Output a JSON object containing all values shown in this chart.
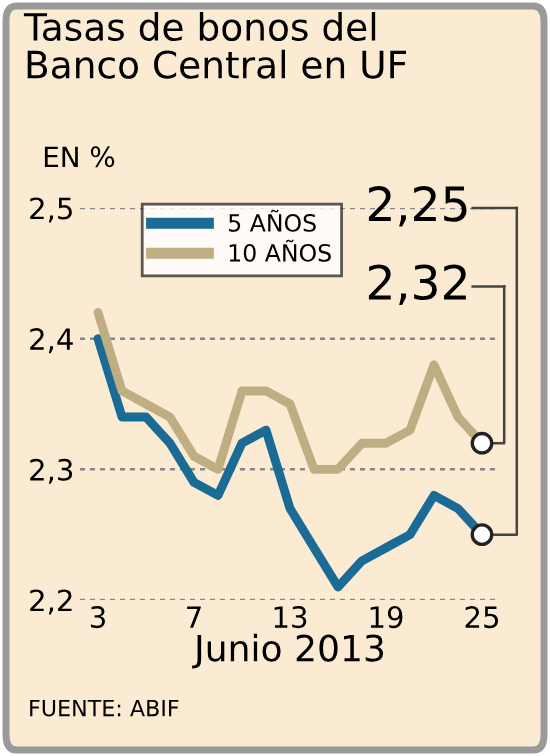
{
  "chart_data": {
    "type": "line",
    "title": "Tasas de bonos del\nBanco Central en UF",
    "ylabel": "EN %",
    "xlabel": "Junio 2013",
    "categories": [
      "3",
      null,
      null,
      null,
      "7",
      null,
      null,
      null,
      "13",
      null,
      null,
      null,
      "19",
      null,
      null,
      null,
      "25"
    ],
    "series": [
      {
        "name": "5 AÑOS",
        "color": "#1a6b96",
        "values": [
          2.4,
          2.34,
          2.34,
          2.32,
          2.29,
          2.28,
          2.32,
          2.33,
          2.27,
          2.24,
          2.21,
          2.23,
          2.24,
          2.25,
          2.28,
          2.27,
          2.25
        ]
      },
      {
        "name": "10 AÑOS",
        "color": "#bfae82",
        "values": [
          2.42,
          2.36,
          2.35,
          2.34,
          2.31,
          2.3,
          2.36,
          2.36,
          2.35,
          2.3,
          2.3,
          2.32,
          2.32,
          2.33,
          2.38,
          2.34,
          2.32
        ]
      }
    ],
    "ylim": [
      2.2,
      2.5
    ],
    "yticks": [
      {
        "value": 2.2,
        "label": "2,2"
      },
      {
        "value": 2.3,
        "label": "2,3"
      },
      {
        "value": 2.4,
        "label": "2,4"
      },
      {
        "value": 2.5,
        "label": "2,5"
      }
    ],
    "grid": "y",
    "legend": "top left",
    "marker": "none",
    "line_style": "solid",
    "annotations": [
      {
        "text": "2,25",
        "x": "25",
        "y": 2.25
      },
      {
        "text": "2,32",
        "x": "25",
        "y": 2.32
      },
      "FUENTE: ABIF"
    ]
  }
}
